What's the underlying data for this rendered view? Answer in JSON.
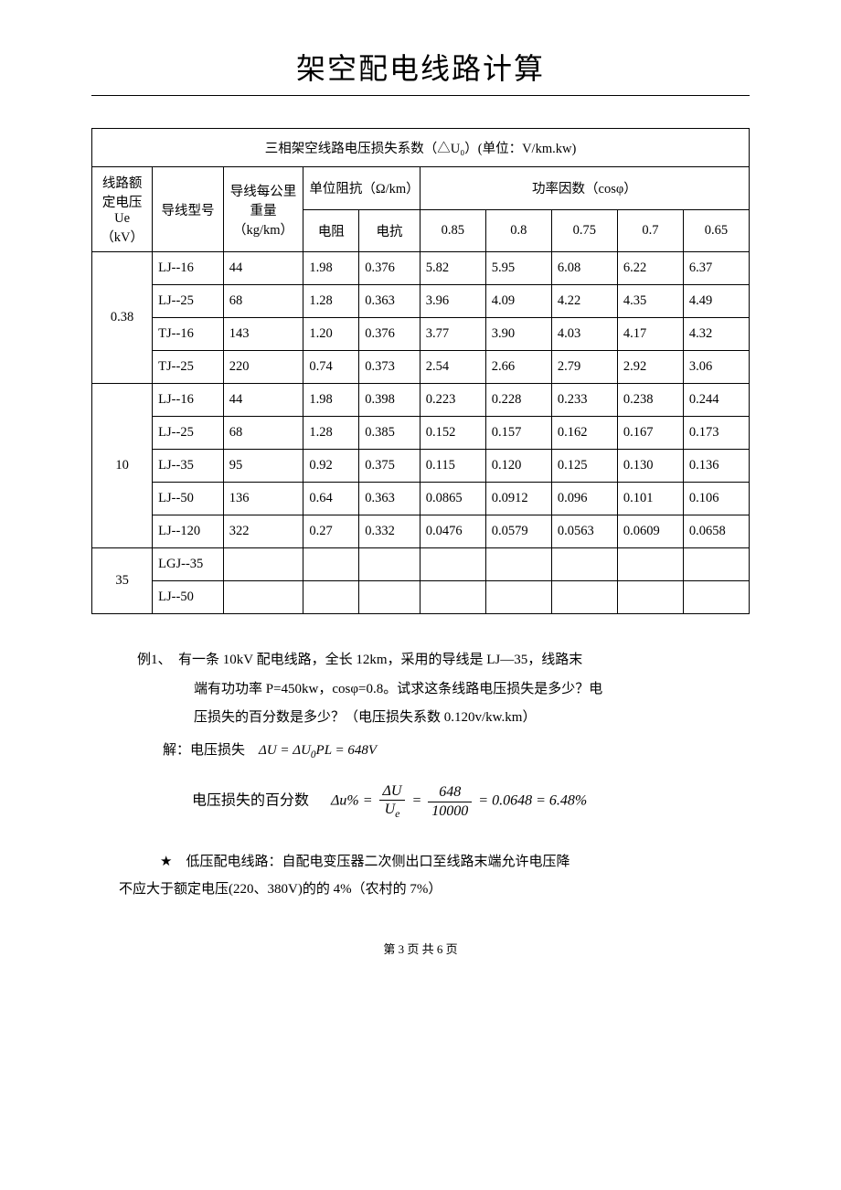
{
  "title": "架空配电线路计算",
  "table": {
    "caption": "三相架空线路电压损失系数（△U₀）(单位：V/km.kw)",
    "headers": {
      "col1": "线路额定电压Ue（kV）",
      "col2": "导线型号",
      "col3": "导线每公里重量（kg/km）",
      "impedance_group": "单位阻抗（Ω/km）",
      "col4": "电阻",
      "col5": "电抗",
      "pf_group": "功率因数（cosφ）",
      "pf1": "0.85",
      "pf2": "0.8",
      "pf3": "0.75",
      "pf4": "0.7",
      "pf5": "0.65"
    },
    "groups": [
      {
        "voltage": "0.38",
        "rows": [
          {
            "model": "LJ--16",
            "weight": "44",
            "r": "1.98",
            "x": "0.376",
            "c1": "5.82",
            "c2": "5.95",
            "c3": "6.08",
            "c4": "6.22",
            "c5": "6.37"
          },
          {
            "model": "LJ--25",
            "weight": "68",
            "r": "1.28",
            "x": "0.363",
            "c1": "3.96",
            "c2": "4.09",
            "c3": "4.22",
            "c4": "4.35",
            "c5": "4.49"
          },
          {
            "model": "TJ--16",
            "weight": "143",
            "r": "1.20",
            "x": "0.376",
            "c1": "3.77",
            "c2": "3.90",
            "c3": "4.03",
            "c4": "4.17",
            "c5": "4.32"
          },
          {
            "model": "TJ--25",
            "weight": "220",
            "r": "0.74",
            "x": "0.373",
            "c1": "2.54",
            "c2": "2.66",
            "c3": "2.79",
            "c4": "2.92",
            "c5": "3.06"
          }
        ]
      },
      {
        "voltage": "10",
        "rows": [
          {
            "model": "LJ--16",
            "weight": "44",
            "r": "1.98",
            "x": "0.398",
            "c1": "0.223",
            "c2": "0.228",
            "c3": "0.233",
            "c4": "0.238",
            "c5": "0.244"
          },
          {
            "model": "LJ--25",
            "weight": "68",
            "r": "1.28",
            "x": "0.385",
            "c1": "0.152",
            "c2": "0.157",
            "c3": "0.162",
            "c4": "0.167",
            "c5": "0.173"
          },
          {
            "model": "LJ--35",
            "weight": "95",
            "r": "0.92",
            "x": "0.375",
            "c1": "0.115",
            "c2": "0.120",
            "c3": "0.125",
            "c4": "0.130",
            "c5": "0.136"
          },
          {
            "model": "LJ--50",
            "weight": "136",
            "r": "0.64",
            "x": "0.363",
            "c1": "0.0865",
            "c2": "0.0912",
            "c3": "0.096",
            "c4": "0.101",
            "c5": "0.106"
          },
          {
            "model": "LJ--120",
            "weight": "322",
            "r": "0.27",
            "x": "0.332",
            "c1": "0.0476",
            "c2": "0.0579",
            "c3": "0.0563",
            "c4": "0.0609",
            "c5": "0.0658"
          }
        ]
      },
      {
        "voltage": "35",
        "rows": [
          {
            "model": "LGJ--35",
            "weight": "",
            "r": "",
            "x": "",
            "c1": "",
            "c2": "",
            "c3": "",
            "c4": "",
            "c5": ""
          },
          {
            "model": "LJ--50",
            "weight": "",
            "r": "",
            "x": "",
            "c1": "",
            "c2": "",
            "c3": "",
            "c4": "",
            "c5": ""
          }
        ]
      }
    ]
  },
  "example": {
    "label": "例1、",
    "line1": "有一条 10kV 配电线路，全长 12km，采用的导线是 LJ—35，线路末",
    "line2": "端有功功率 P=450kw，cosφ=0.8。试求这条线路电压损失是多少？电",
    "line3": "压损失的百分数是多少？（电压损失系数 0.120v/kw.km）",
    "solution_label": "解：电压损失",
    "formula1_lhs": "ΔU = ΔU",
    "formula1_sub": "0",
    "formula1_rhs": "PL = 648V",
    "percent_label": "电压损失的百分数",
    "formula2_lhs": "Δu% =",
    "frac1_num": "ΔU",
    "frac1_den_main": "U",
    "frac1_den_sub": "e",
    "frac2_num": "648",
    "frac2_den": "10000",
    "formula2_rhs": "= 0.0648 = 6.48%"
  },
  "note": {
    "star": "★",
    "line1": "低压配电线路：自配电变压器二次侧出口至线路末端允许电压降",
    "line2": "不应大于额定电压(220、380V)的的 4%（农村的 7%）"
  },
  "footer": "第 3 页 共 6 页"
}
